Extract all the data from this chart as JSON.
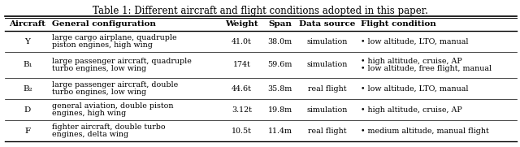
{
  "title": "Table 1: Different aircraft and flight conditions adopted in this paper.",
  "headers": [
    "Aircraft",
    "General configuration",
    "Weight",
    "Span",
    "Data source",
    "Flight condition"
  ],
  "rows": [
    {
      "aircraft": "Y",
      "config": [
        "large cargo airplane, quadruple",
        "piston engines, high wing"
      ],
      "weight": "41.0t",
      "span": "38.0m",
      "source": "simulation",
      "conditions": [
        "• low altitude, LTO, manual"
      ]
    },
    {
      "aircraft": "B₁",
      "config": [
        "large passenger aircraft, quadruple",
        "turbo engines, low wing"
      ],
      "weight": "174t",
      "span": "59.6m",
      "source": "simulation",
      "conditions": [
        "• high altitude, cruise, AP",
        "• low altitude, free flight, manual"
      ]
    },
    {
      "aircraft": "B₂",
      "config": [
        "large passenger aircraft, double",
        "turbo engines, low wing"
      ],
      "weight": "44.6t",
      "span": "35.8m",
      "source": "real flight",
      "conditions": [
        "• low altitude, LTO, manual"
      ]
    },
    {
      "aircraft": "D",
      "config": [
        "general aviation, double piston",
        "engines, high wing"
      ],
      "weight": "3.12t",
      "span": "19.8m",
      "source": "simulation",
      "conditions": [
        "• high altitude, cruise, AP"
      ]
    },
    {
      "aircraft": "F",
      "config": [
        "fighter aircraft, double turbo",
        "engines, delta wing"
      ],
      "weight": "10.5t",
      "span": "11.4m",
      "source": "real flight",
      "conditions": [
        "• medium altitude, manual flight"
      ]
    }
  ],
  "background": "#ffffff",
  "header_fontsize": 7.5,
  "body_fontsize": 6.8,
  "title_fontsize": 8.5,
  "fig_width": 6.4,
  "fig_height": 1.81,
  "dpi": 100
}
